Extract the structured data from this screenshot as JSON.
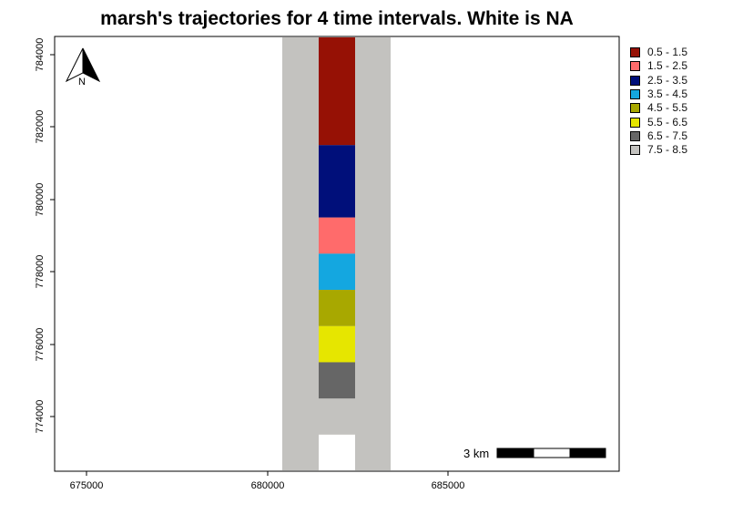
{
  "title": "marsh's trajectories for 4 time intervals. White is NA",
  "north_arrow": {
    "label": "N"
  },
  "scale_bar": {
    "label": "3 km"
  },
  "axes": {
    "x_ticks": [
      "675000",
      "680000",
      "685000"
    ],
    "y_ticks": [
      "774000",
      "776000",
      "778000",
      "780000",
      "782000",
      "784000"
    ]
  },
  "legend": {
    "items": [
      {
        "label": "0.5 - 1.5",
        "color": "#961105"
      },
      {
        "label": "1.5 - 2.5",
        "color": "#ff6b6b"
      },
      {
        "label": "2.5 - 3.5",
        "color": "#000f7a"
      },
      {
        "label": "3.5 - 4.5",
        "color": "#14a7e0"
      },
      {
        "label": "4.5 - 5.5",
        "color": "#a8a800"
      },
      {
        "label": "5.5 - 6.5",
        "color": "#e6e600"
      },
      {
        "label": "6.5 - 7.5",
        "color": "#666666"
      },
      {
        "label": "7.5 - 8.5",
        "color": "#c3c2bf"
      }
    ]
  },
  "raster": {
    "background_class": "7.5 - 8.5",
    "cells": [
      {
        "class": "0.5 - 1.5",
        "y_from": 781500,
        "y_to": 784500
      },
      {
        "class": "2.5 - 3.5",
        "y_from": 779500,
        "y_to": 781500
      },
      {
        "class": "1.5 - 2.5",
        "y_from": 778500,
        "y_to": 779500
      },
      {
        "class": "3.5 - 4.5",
        "y_from": 777500,
        "y_to": 778500
      },
      {
        "class": "4.5 - 5.5",
        "y_from": 776500,
        "y_to": 777500
      },
      {
        "class": "5.5 - 6.5",
        "y_from": 775500,
        "y_to": 776500
      },
      {
        "class": "6.5 - 7.5",
        "y_from": 774500,
        "y_to": 775500
      },
      {
        "class": "NA",
        "y_from": 772500,
        "y_to": 773500
      }
    ]
  }
}
